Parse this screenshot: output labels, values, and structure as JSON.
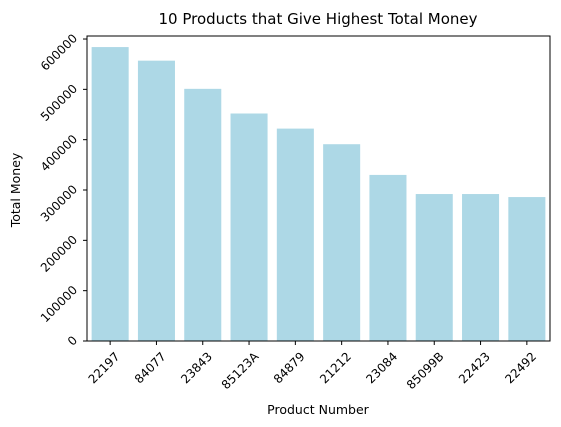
{
  "chart_data": {
    "type": "bar",
    "title": "10 Products that Give Highest Total Money",
    "xlabel": "Product Number",
    "ylabel": "Total Money",
    "categories": [
      "22197",
      "84077",
      "23843",
      "85123A",
      "84879",
      "21212",
      "23084",
      "85099B",
      "22423",
      "22492"
    ],
    "values": [
      584000,
      557000,
      501000,
      452000,
      422000,
      391000,
      330000,
      292000,
      292000,
      286000
    ],
    "ylim": [
      0,
      606000
    ],
    "yticks": [
      0,
      100000,
      200000,
      300000,
      400000,
      500000,
      600000
    ],
    "ytick_labels": [
      "0",
      "100000",
      "200000",
      "300000",
      "400000",
      "500000",
      "600000"
    ],
    "bar_color": "#add8e6",
    "grid": false,
    "legend": "none"
  }
}
